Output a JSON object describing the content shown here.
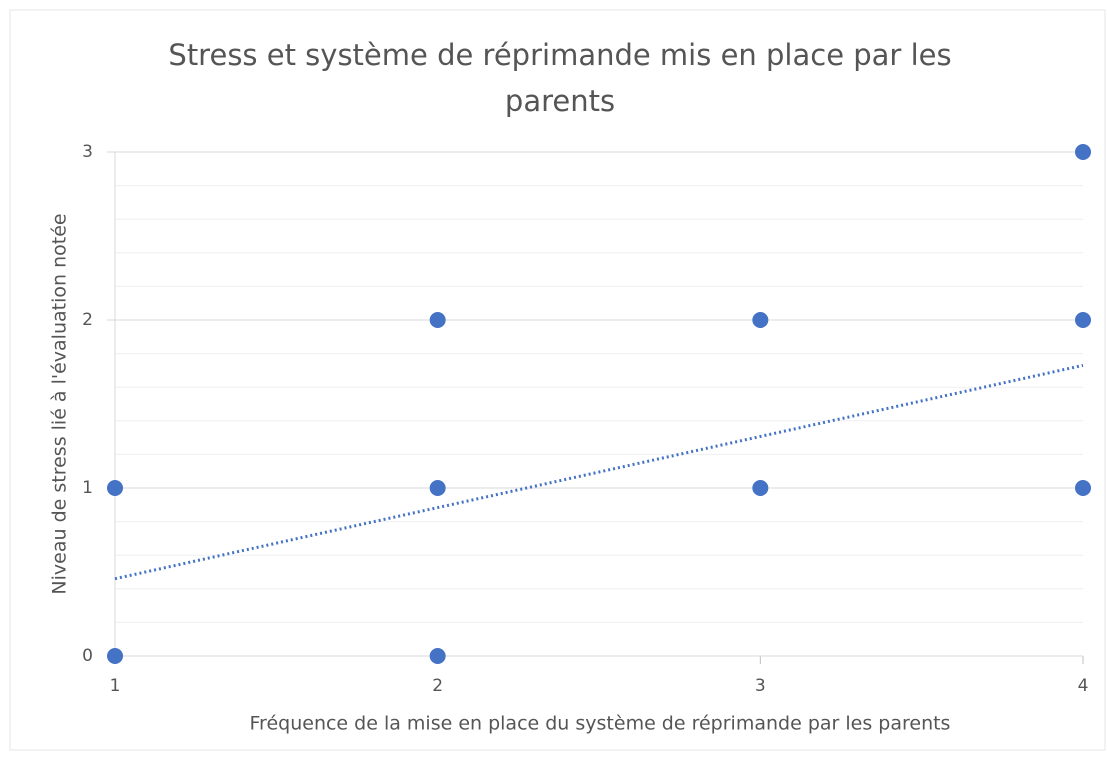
{
  "chart_data": {
    "type": "scatter",
    "title": "Stress et système de réprimande mis en place par les parents",
    "x_label": "Fréquence de la mise en place du système de réprimande par les parents",
    "y_label": "Niveau de stress lié à l'évaluation notée",
    "series": [
      {
        "color": "#4472c4",
        "x": [
          1,
          1,
          2,
          2,
          2,
          3,
          3,
          4,
          4,
          4
        ],
        "values": [
          1,
          0,
          2,
          1,
          0,
          2,
          1,
          3,
          2,
          1
        ]
      }
    ],
    "trendline": {
      "x": [
        1,
        4
      ],
      "values": [
        0.46,
        1.73
      ],
      "color": "#4472c4"
    },
    "xlim": [
      1,
      4
    ],
    "xticks": [
      1,
      2,
      3,
      4
    ],
    "ylim": [
      0,
      3
    ],
    "yticks": [
      0,
      1,
      2,
      3
    ],
    "minor_yticks": [
      0.2,
      0.4,
      0.6,
      0.8,
      1.2,
      1.4,
      1.6,
      1.8,
      2.2,
      2.4,
      2.6,
      2.8
    ],
    "grid": true
  }
}
